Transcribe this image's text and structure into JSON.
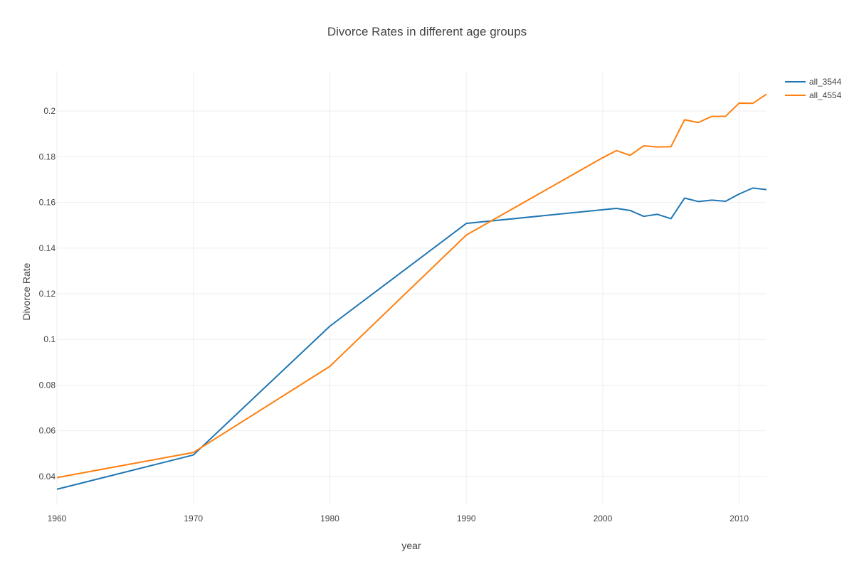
{
  "chart_data": {
    "type": "line",
    "title": "Divorce Rates in different age groups",
    "xlabel": "year",
    "ylabel": "Divorce Rate",
    "xlim": [
      1960,
      2012
    ],
    "ylim": [
      0.0275,
      0.2175
    ],
    "x_ticks": [
      "1960",
      "1970",
      "1980",
      "1990",
      "2000",
      "2010"
    ],
    "y_ticks": [
      "0.04",
      "0.06",
      "0.08",
      "0.1",
      "0.12",
      "0.14",
      "0.16",
      "0.18",
      "0.2"
    ],
    "grid": true,
    "legend_position": "top-right",
    "series": [
      {
        "name": "all_3544",
        "color": "#1f77b4",
        "x": [
          1960,
          1970,
          1980,
          1990,
          2000,
          2001,
          2002,
          2003,
          2004,
          2005,
          2006,
          2007,
          2008,
          2009,
          2010,
          2011,
          2012
        ],
        "y": [
          0.0344,
          0.0494,
          0.1058,
          0.1508,
          0.1568,
          0.1574,
          0.1565,
          0.1539,
          0.1548,
          0.1529,
          0.1619,
          0.1604,
          0.161,
          0.1605,
          0.1637,
          0.1663,
          0.1656
        ]
      },
      {
        "name": "all_4554",
        "color": "#ff7f0e",
        "x": [
          1960,
          1970,
          1980,
          1990,
          2000,
          2001,
          2002,
          2003,
          2004,
          2005,
          2006,
          2007,
          2008,
          2009,
          2010,
          2011,
          2012
        ],
        "y": [
          0.0395,
          0.0505,
          0.0882,
          0.1457,
          0.1796,
          0.1827,
          0.1806,
          0.1848,
          0.1843,
          0.1844,
          0.1962,
          0.195,
          0.1977,
          0.1977,
          0.2035,
          0.2034,
          0.2074
        ]
      }
    ]
  }
}
